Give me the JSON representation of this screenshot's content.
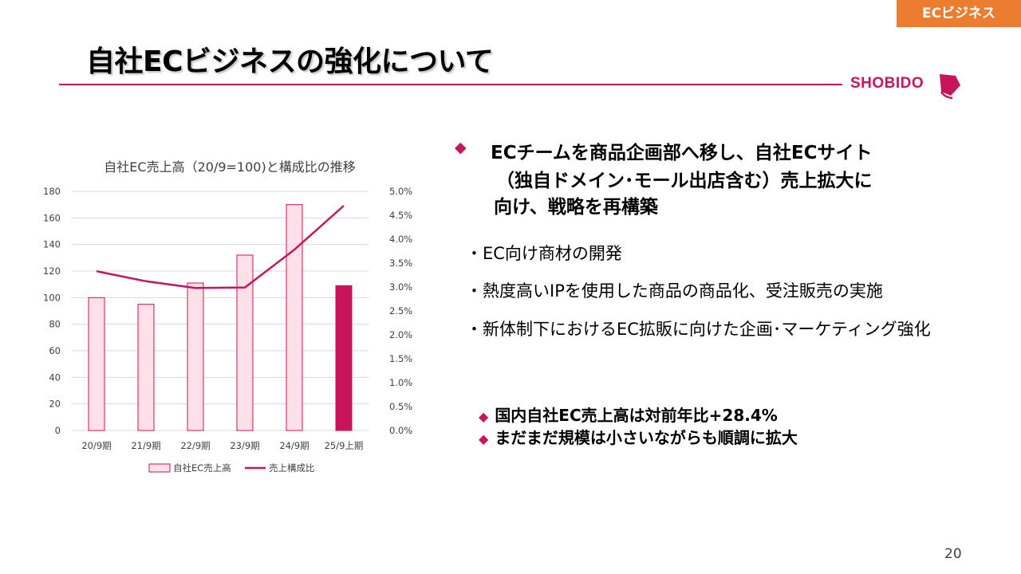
{
  "header": {
    "section_tag": "ECビジネス",
    "title": "自社ECビジネスの強化について",
    "logo_text": "SHOBIDO",
    "brand_color": "#c7145a",
    "tag_color": "#ec7c30"
  },
  "headline": {
    "line1": "ECチームを商品企画部へ移し、自社ECサイト",
    "line2": "（独自ドメイン･モール出店含む）売上拡大に",
    "line3": "向け、戦略を再構築",
    "marker_icon": "diamond-icon"
  },
  "bullets": [
    "・EC向け商材の開発",
    "・熱度高いIPを使用した商品の商品化、受注販売の実施",
    "・新体制下におけるEC拡販に向けた企画･マーケティング強化"
  ],
  "notes": [
    "国内自社EC売上高は対前年比+28.4%",
    "まだまだ規模は小さいながらも順調に拡大"
  ],
  "page_number": "20",
  "chart_data": {
    "type": "bar",
    "title": "自社EC売上高（20/9=100)と構成比の推移",
    "categories": [
      "20/9期",
      "21/9期",
      "22/9期",
      "23/9期",
      "24/9期",
      "25/9上期"
    ],
    "series": [
      {
        "name": "自社EC売上高",
        "type": "bar",
        "axis": "left",
        "values": [
          100,
          95,
          111,
          132,
          170,
          109
        ],
        "colors": [
          "#fde0e8",
          "#fde0e8",
          "#fde0e8",
          "#fde0e8",
          "#fde0e8",
          "#c7145a"
        ],
        "border": "#c7145a"
      },
      {
        "name": "売上構成比",
        "type": "line",
        "axis": "right",
        "values": [
          0.0333,
          0.0312,
          0.0298,
          0.0299,
          0.0378,
          0.047
        ],
        "color": "#c7145a"
      }
    ],
    "y_left": {
      "min": 0,
      "max": 180,
      "ticks": [
        "0",
        "20",
        "40",
        "60",
        "80",
        "100",
        "120",
        "140",
        "160",
        "180"
      ]
    },
    "y_right": {
      "min": 0,
      "max": 0.05,
      "ticks": [
        "0.0%",
        "0.5%",
        "1.0%",
        "1.5%",
        "2.0%",
        "2.5%",
        "3.0%",
        "3.5%",
        "4.0%",
        "4.5%",
        "5.0%"
      ]
    },
    "grid": true,
    "legend": "bottom"
  }
}
